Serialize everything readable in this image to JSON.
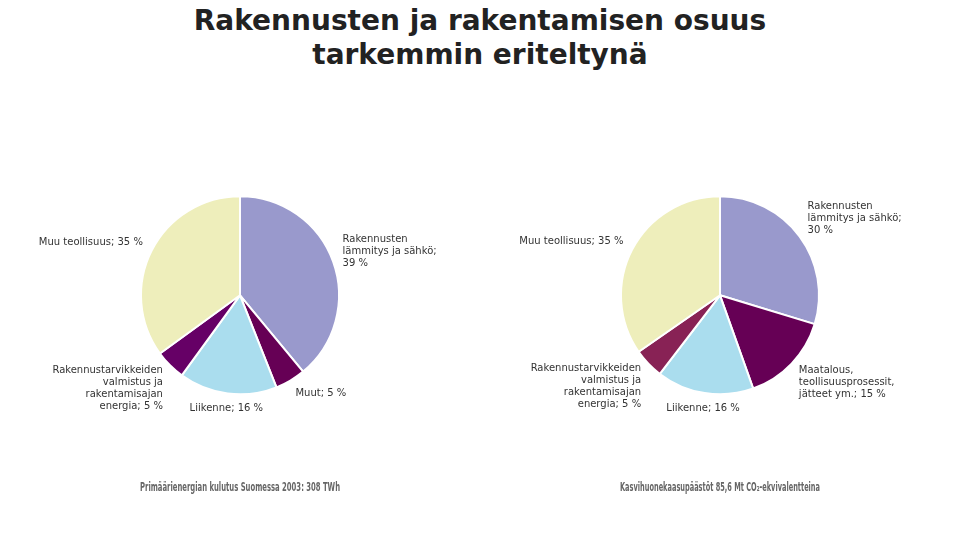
{
  "title": [
    "Rakennusten ja rakentamisen osuus",
    "tarkemmin eriteltynä"
  ],
  "chart_data": [
    {
      "type": "pie",
      "title": "Primäärienergian kulutus Suomessa 2003: 308 TWh",
      "categories": [
        "Rakennusten\nlämmitys ja sähkö;\n39 %",
        "Muut; 5 %",
        "Liikenne; 16 %",
        "Rakennustarvikkeiden\nvalmistus ja\nrakentamisajan\nenergia; 5 %",
        "Muu teollisuus; 35 %"
      ],
      "values": [
        39,
        5,
        16,
        5,
        35
      ],
      "colors": [
        "#9999cc",
        "#660055",
        "#aaddee",
        "#660066",
        "#eeeebb"
      ]
    },
    {
      "type": "pie",
      "title": "Kasvihuonekaasupäästöt 85,6 Mt CO₂-ekvivalentteina",
      "categories": [
        "Rakennusten\nlämmitys ja sähkö;\n30 %",
        "Maatalous,\nteollisuusprosessit,\njätteet ym.; 15 %",
        "Liikenne; 16 %",
        "Rakennustarvikkeiden\nvalmistus ja\nrakentamisajan\nenergia; 5 %",
        "Muu teollisuus; 35 %"
      ],
      "values": [
        30,
        15,
        16,
        5,
        35
      ],
      "colors": [
        "#9999cc",
        "#660055",
        "#aaddee",
        "#882255",
        "#eeeebb"
      ]
    }
  ]
}
